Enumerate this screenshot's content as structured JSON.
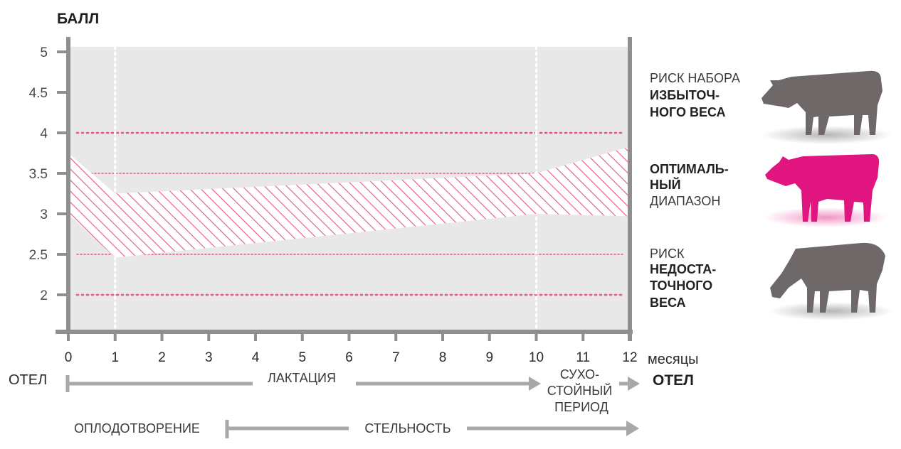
{
  "chart_data": {
    "type": "area",
    "ylabel": "БАЛЛ",
    "x_unit": "месяцы",
    "xlim": [
      0,
      12
    ],
    "ylim": [
      1.5,
      5.1
    ],
    "y_ticks": [
      "5",
      "4.5",
      "4",
      "3.5",
      "3",
      "2.5",
      "2"
    ],
    "y_tick_values": [
      5,
      4.5,
      4,
      3.5,
      3,
      2.5,
      2
    ],
    "x_ticks": [
      "0",
      "1",
      "2",
      "3",
      "4",
      "5",
      "6",
      "7",
      "8",
      "9",
      "10",
      "11",
      "12"
    ],
    "x_tick_values": [
      0,
      1,
      2,
      3,
      4,
      5,
      6,
      7,
      8,
      9,
      10,
      11,
      12
    ],
    "reference_lines": [
      {
        "y": 4,
        "style": "dotted",
        "color": "#e8528f"
      },
      {
        "y": 3.5,
        "style": "dotted",
        "color": "#e8528f"
      },
      {
        "y": 2.5,
        "style": "dotted",
        "color": "#e8528f"
      },
      {
        "y": 2,
        "style": "dotted",
        "color": "#e8528f"
      }
    ],
    "vertical_markers": [
      1,
      10
    ],
    "band": {
      "name": "",
      "x": [
        0,
        1,
        10,
        12
      ],
      "upper": [
        3.75,
        3.25,
        3.5,
        3.83
      ],
      "lower": [
        3.0,
        2.46,
        3.0,
        2.97
      ],
      "fill": "hatched",
      "color": "#e8528f"
    },
    "grid": false
  },
  "timeline": {
    "calving_left": "ОТЕЛ",
    "calving_right": "ОТЕЛ",
    "lactation": "ЛАКТАЦИЯ",
    "dry_period": [
      "СУХО-",
      "СТОЙНЫЙ",
      "ПЕРИОД"
    ],
    "insemination": "ОПЛОДОТВОРЕНИЕ",
    "pregnancy": "СТЕЛЬНОСТЬ",
    "arrow_color": "#a8a8a8"
  },
  "legend": {
    "over": {
      "line1": "РИСК НАБОРА",
      "line2": "ИЗБЫТОЧ-",
      "line3": "НОГО ВЕСА",
      "icon": "cow-standing-icon",
      "color": "#6e6869"
    },
    "optimal": {
      "line1": "ОПТИМАЛЬ-",
      "line2": "НЫЙ",
      "line3": "ДИАПАЗОН",
      "icon": "cow-standing-icon",
      "color": "#e0157f"
    },
    "under": {
      "line1": "РИСК",
      "line2": "НЕДОСТА-",
      "line3": "ТОЧНОГО",
      "line4": "ВЕСА",
      "icon": "cow-grazing-icon",
      "color": "#6e6869"
    }
  },
  "colors": {
    "plot_bg": "#e8e8e8",
    "axis": "#8f8f8f",
    "accent": "#e8528f"
  }
}
